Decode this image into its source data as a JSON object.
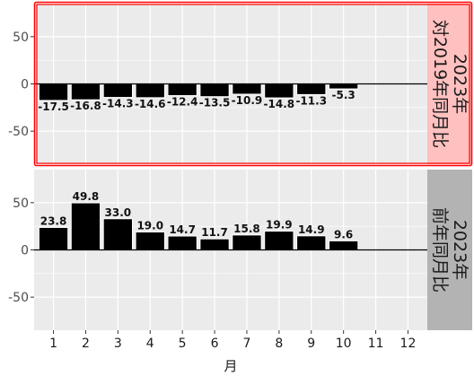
{
  "chart_data": [
    {
      "type": "bar",
      "facet_label": [
        "2023年",
        "対2019年同月比"
      ],
      "facet_highlighted": true,
      "categories": [
        "1",
        "2",
        "3",
        "4",
        "5",
        "6",
        "7",
        "8",
        "9",
        "10",
        "11",
        "12"
      ],
      "values": [
        -17.5,
        -16.8,
        -14.3,
        -14.6,
        -12.4,
        -13.5,
        -10.9,
        -14.8,
        -11.3,
        -5.3,
        null,
        null
      ],
      "value_labels": [
        "-17.5",
        "-16.8",
        "-14.3",
        "-14.6",
        "-12.4",
        "-13.5",
        "-10.9",
        "-14.8",
        "-11.3",
        "-5.3",
        "",
        ""
      ],
      "ylim": [
        -85,
        85
      ],
      "yticks": [
        50,
        0,
        -50
      ],
      "xlabel": "月",
      "ylabel": ""
    },
    {
      "type": "bar",
      "facet_label": [
        "2023年",
        "前年同月比"
      ],
      "facet_highlighted": false,
      "categories": [
        "1",
        "2",
        "3",
        "4",
        "5",
        "6",
        "7",
        "8",
        "9",
        "10",
        "11",
        "12"
      ],
      "values": [
        23.8,
        49.8,
        33.0,
        19.0,
        14.7,
        11.7,
        15.8,
        19.9,
        14.9,
        9.6,
        null,
        null
      ],
      "value_labels": [
        "23.8",
        "49.8",
        "33.0",
        "19.0",
        "14.7",
        "11.7",
        "15.8",
        "19.9",
        "14.9",
        "9.6",
        "",
        ""
      ],
      "ylim": [
        -85,
        85
      ],
      "yticks": [
        50,
        0,
        -50
      ],
      "xlabel": "月",
      "ylabel": ""
    }
  ],
  "colors": {
    "panel_bg": "#ebebeb",
    "grid_major": "#ffffff",
    "bar_fill": "#000000",
    "bar_outline": "#ffffff",
    "strip_normal": "#b3b3b3",
    "strip_highlight": "#ffc0c0",
    "highlight_border": "#ff0000"
  },
  "xaxis_title": "月"
}
